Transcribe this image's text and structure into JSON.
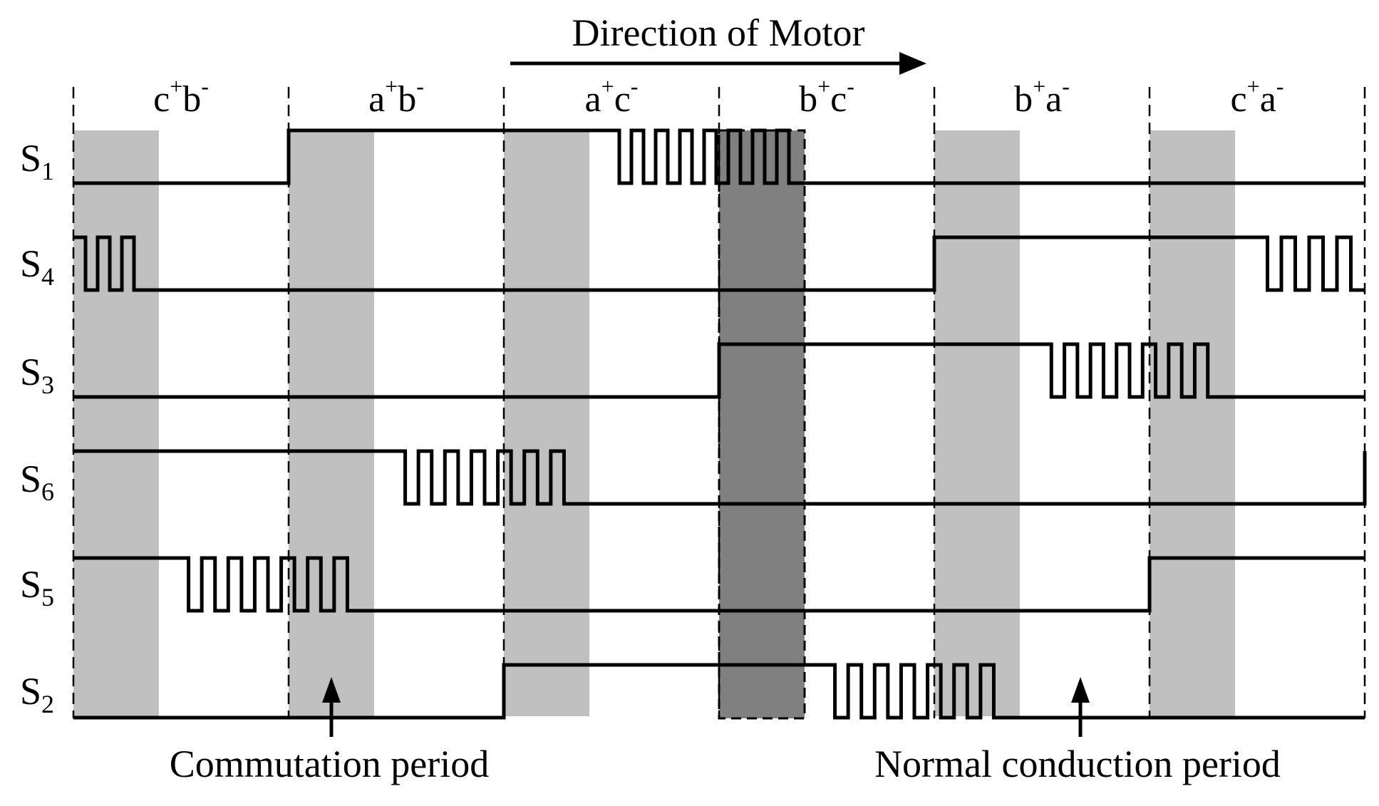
{
  "direction_label": "Direction of Motor",
  "sectors": [
    {
      "p": "c",
      "n": "b"
    },
    {
      "p": "a",
      "n": "b"
    },
    {
      "p": "a",
      "n": "c"
    },
    {
      "p": "b",
      "n": "c"
    },
    {
      "p": "b",
      "n": "a"
    },
    {
      "p": "c",
      "n": "a"
    }
  ],
  "superscripts": {
    "plus": "+",
    "minus": "-"
  },
  "signals": [
    {
      "base": "S",
      "sub": "1"
    },
    {
      "base": "S",
      "sub": "4"
    },
    {
      "base": "S",
      "sub": "3"
    },
    {
      "base": "S",
      "sub": "6"
    },
    {
      "base": "S",
      "sub": "5"
    },
    {
      "base": "S",
      "sub": "2"
    }
  ],
  "annotations": {
    "commutation": "Commutation period",
    "normal": "Normal conduction period"
  },
  "colors": {
    "commutation_shade": "#c0c0c0",
    "highlight_shade": "#808080",
    "line": "#000000"
  }
}
